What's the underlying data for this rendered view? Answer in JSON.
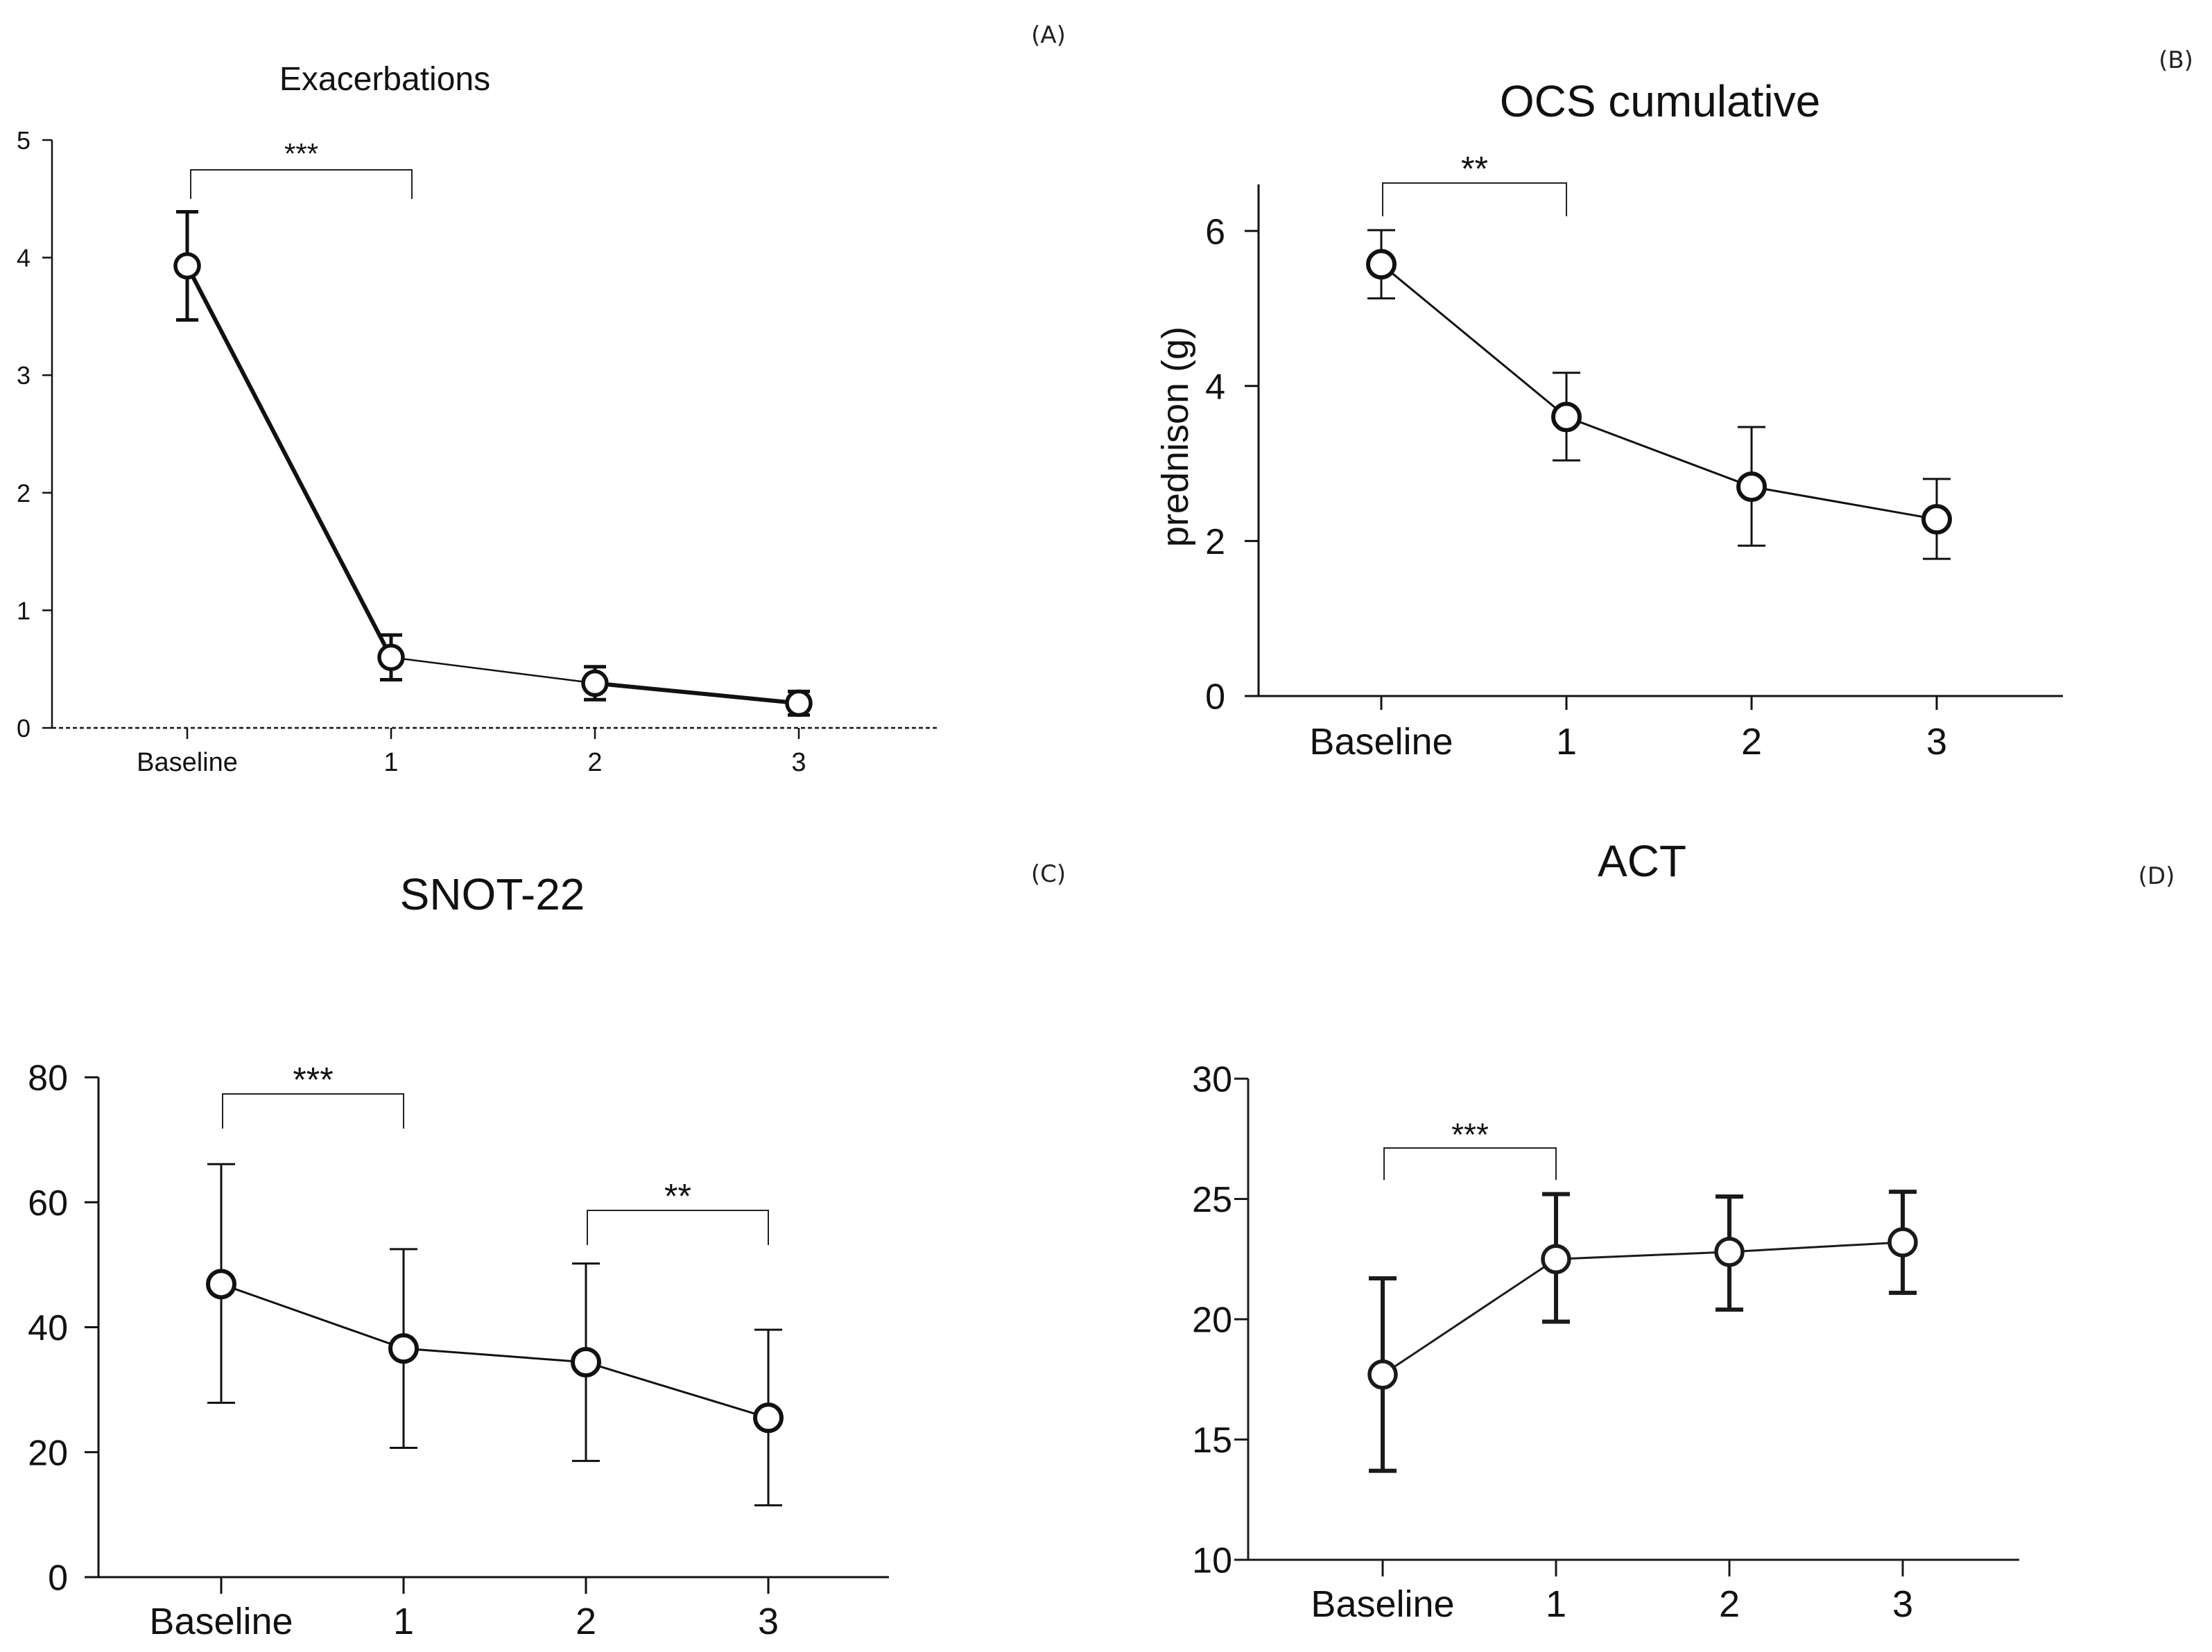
{
  "figure": {
    "panel_labels": [
      "(A)",
      "(B)",
      "(C)",
      "(D)"
    ]
  },
  "chart_data": [
    {
      "id": "A",
      "type": "line",
      "title": "Exacerbations",
      "xlabel": "",
      "ylabel": "",
      "categories": [
        "Baseline",
        "1",
        "2",
        "3"
      ],
      "series": [
        {
          "name": "Exacerbations",
          "values": [
            3.93,
            0.6,
            0.38,
            0.21
          ],
          "err_low": [
            3.47,
            0.41,
            0.24,
            0.11
          ],
          "err_high": [
            4.39,
            0.79,
            0.52,
            0.31
          ]
        }
      ],
      "ylim": [
        0,
        5
      ],
      "yticks": [
        "0",
        "1",
        "2",
        "3",
        "4",
        "5"
      ],
      "significance": [
        {
          "from": "Baseline",
          "to": "1",
          "label": "***"
        }
      ]
    },
    {
      "id": "B",
      "type": "line",
      "title": "OCS cumulative",
      "xlabel": "",
      "ylabel": "prednison  (g)",
      "categories": [
        "Baseline",
        "1",
        "2",
        "3"
      ],
      "series": [
        {
          "name": "OCS cumulative",
          "values": [
            5.57,
            3.6,
            2.7,
            2.28
          ],
          "err_low": [
            5.13,
            3.04,
            1.94,
            1.77
          ],
          "err_high": [
            6.01,
            4.17,
            3.47,
            2.8
          ]
        }
      ],
      "ylim": [
        0,
        6.6
      ],
      "yticks": [
        "0",
        "2",
        "4",
        "6"
      ],
      "significance": [
        {
          "from": "Baseline",
          "to": "1",
          "label": "**"
        }
      ]
    },
    {
      "id": "C",
      "type": "line",
      "title": "SNOT-22",
      "xlabel": "",
      "ylabel": "",
      "categories": [
        "Baseline",
        "1",
        "2",
        "3"
      ],
      "series": [
        {
          "name": "SNOT-22",
          "values": [
            46.9,
            36.6,
            34.4,
            25.5
          ],
          "err_low": [
            27.9,
            20.7,
            18.6,
            11.5
          ],
          "err_high": [
            66.1,
            52.5,
            50.2,
            39.6
          ]
        }
      ],
      "ylim": [
        0,
        80
      ],
      "yticks": [
        "0",
        "20",
        "40",
        "60",
        "80"
      ],
      "significance": [
        {
          "from": "Baseline",
          "to": "1",
          "label": "***"
        },
        {
          "from": "2",
          "to": "3",
          "label": "**"
        }
      ]
    },
    {
      "id": "D",
      "type": "line",
      "title": "ACT",
      "xlabel": "",
      "ylabel": "",
      "categories": [
        "Baseline",
        "1",
        "2",
        "3"
      ],
      "series": [
        {
          "name": "ACT",
          "values": [
            17.7,
            22.5,
            22.8,
            23.2
          ],
          "err_low": [
            13.7,
            19.9,
            20.4,
            21.1
          ],
          "err_high": [
            21.7,
            25.2,
            25.1,
            25.3
          ]
        }
      ],
      "ylim": [
        10,
        30
      ],
      "yticks": [
        "10",
        "15",
        "20",
        "25",
        "30"
      ],
      "significance": [
        {
          "from": "Baseline",
          "to": "1",
          "label": "***"
        }
      ]
    }
  ]
}
